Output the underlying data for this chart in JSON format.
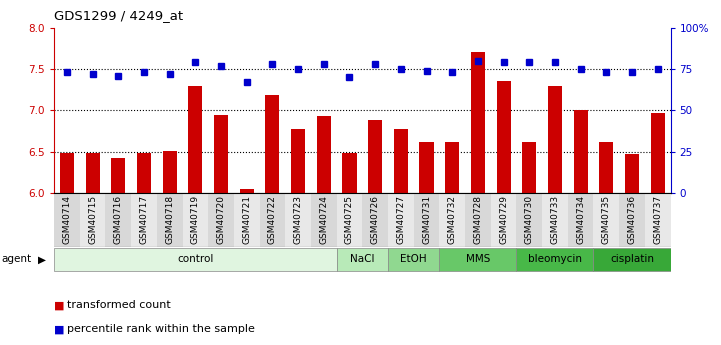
{
  "title": "GDS1299 / 4249_at",
  "samples": [
    "GSM40714",
    "GSM40715",
    "GSM40716",
    "GSM40717",
    "GSM40718",
    "GSM40719",
    "GSM40720",
    "GSM40721",
    "GSM40722",
    "GSM40723",
    "GSM40724",
    "GSM40725",
    "GSM40726",
    "GSM40727",
    "GSM40731",
    "GSM40732",
    "GSM40728",
    "GSM40729",
    "GSM40730",
    "GSM40733",
    "GSM40734",
    "GSM40735",
    "GSM40736",
    "GSM40737"
  ],
  "bar_values": [
    6.48,
    6.48,
    6.42,
    6.48,
    6.51,
    7.3,
    6.95,
    6.05,
    7.18,
    6.78,
    6.93,
    6.48,
    6.88,
    6.77,
    6.62,
    6.62,
    7.7,
    7.35,
    6.62,
    7.3,
    7.0,
    6.62,
    6.47,
    6.97
  ],
  "dot_values": [
    73,
    72,
    71,
    73,
    72,
    79,
    77,
    67,
    78,
    75,
    78,
    70,
    78,
    75,
    74,
    73,
    80,
    79,
    79,
    79,
    75,
    73,
    73,
    75
  ],
  "agents": [
    {
      "label": "control",
      "start": 0,
      "end": 11,
      "color": "#e0f5e0"
    },
    {
      "label": "NaCl",
      "start": 11,
      "end": 13,
      "color": "#b8eab8"
    },
    {
      "label": "EtOH",
      "start": 13,
      "end": 15,
      "color": "#90d890"
    },
    {
      "label": "MMS",
      "start": 15,
      "end": 18,
      "color": "#68c868"
    },
    {
      "label": "bleomycin",
      "start": 18,
      "end": 21,
      "color": "#48b848"
    },
    {
      "label": "cisplatin",
      "start": 21,
      "end": 24,
      "color": "#38a838"
    }
  ],
  "bar_color": "#cc0000",
  "dot_color": "#0000cc",
  "ylim_left": [
    6.0,
    8.0
  ],
  "ylim_right": [
    0,
    100
  ],
  "yticks_left": [
    6.0,
    6.5,
    7.0,
    7.5,
    8.0
  ],
  "yticks_right": [
    0,
    25,
    50,
    75,
    100
  ],
  "ytick_labels_right": [
    "0",
    "25",
    "50",
    "75",
    "100%"
  ],
  "grid_values": [
    6.5,
    7.0,
    7.5
  ],
  "bar_width": 0.55,
  "figsize": [
    7.21,
    3.45
  ],
  "dpi": 100
}
